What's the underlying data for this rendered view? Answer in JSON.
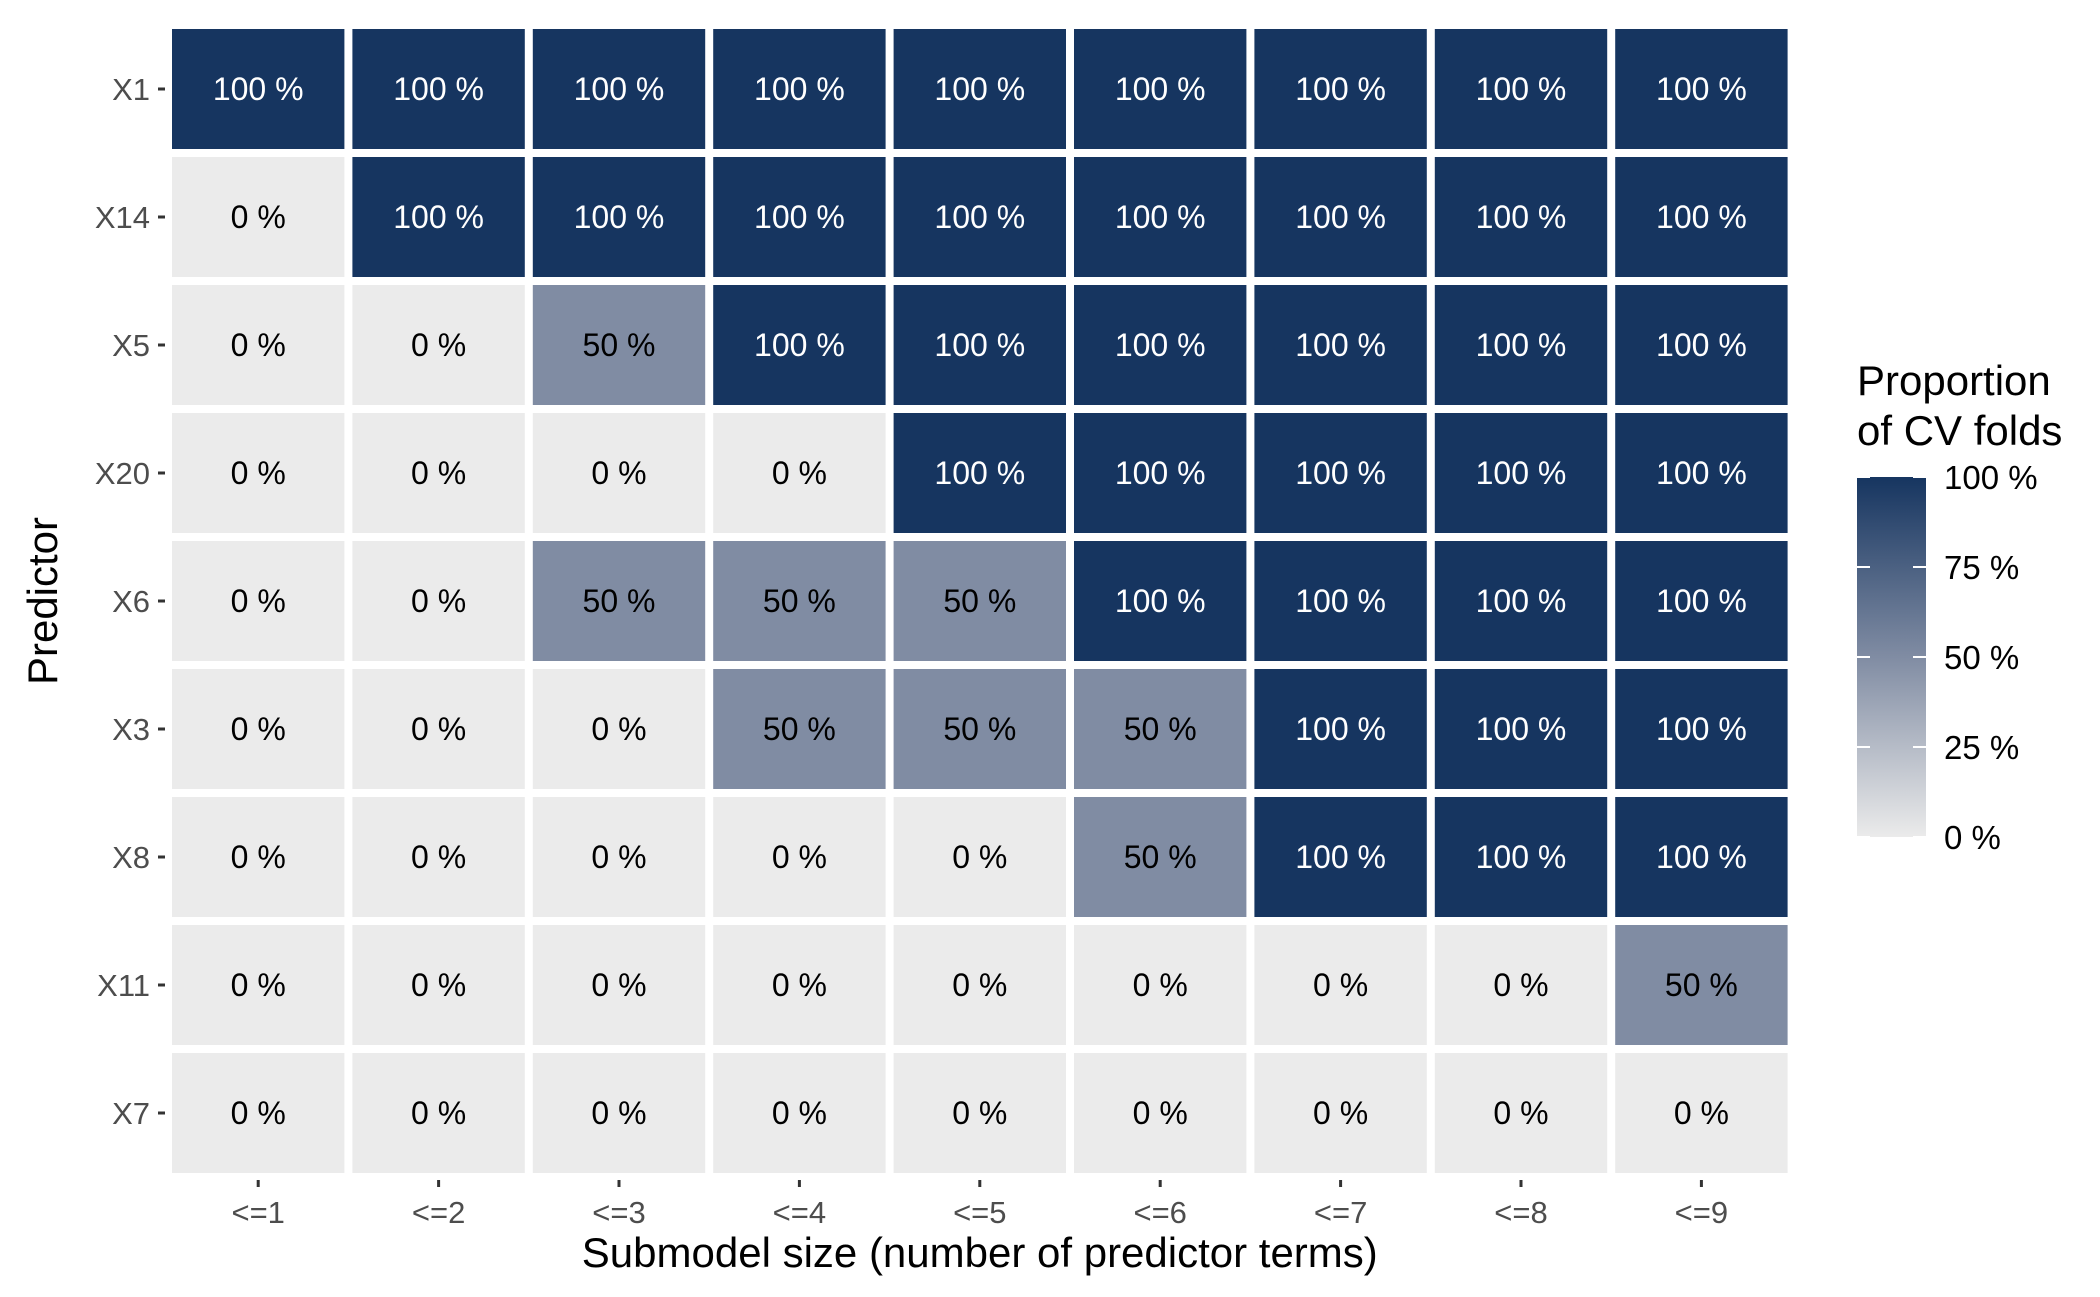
{
  "chart_data": {
    "type": "heatmap",
    "xlabel": "Submodel size (number of predictor terms)",
    "ylabel": "Predictor",
    "x_categories": [
      "<=1",
      "<=2",
      "<=3",
      "<=4",
      "<=5",
      "<=6",
      "<=7",
      "<=8",
      "<=9"
    ],
    "y_categories": [
      "X1",
      "X14",
      "X5",
      "X20",
      "X6",
      "X3",
      "X8",
      "X11",
      "X7"
    ],
    "values": [
      [
        100,
        100,
        100,
        100,
        100,
        100,
        100,
        100,
        100
      ],
      [
        0,
        100,
        100,
        100,
        100,
        100,
        100,
        100,
        100
      ],
      [
        0,
        0,
        50,
        100,
        100,
        100,
        100,
        100,
        100
      ],
      [
        0,
        0,
        0,
        0,
        100,
        100,
        100,
        100,
        100
      ],
      [
        0,
        0,
        50,
        50,
        50,
        100,
        100,
        100,
        100
      ],
      [
        0,
        0,
        0,
        50,
        50,
        50,
        100,
        100,
        100
      ],
      [
        0,
        0,
        0,
        0,
        0,
        50,
        100,
        100,
        100
      ],
      [
        0,
        0,
        0,
        0,
        0,
        0,
        0,
        0,
        50
      ],
      [
        0,
        0,
        0,
        0,
        0,
        0,
        0,
        0,
        0
      ]
    ],
    "value_suffix": " %",
    "legend": {
      "title_lines": [
        "Proportion",
        "of CV folds"
      ],
      "ticks": [
        100,
        75,
        50,
        25,
        0
      ],
      "tick_labels": [
        "100 %",
        "75 %",
        "50 %",
        "25 %",
        "0 %"
      ],
      "placement": "right"
    },
    "colors": {
      "low": "#ebebeb",
      "mid": "#808ca3",
      "high": "#163560",
      "text_dark": "#000000",
      "text_light": "#ffffff"
    }
  }
}
